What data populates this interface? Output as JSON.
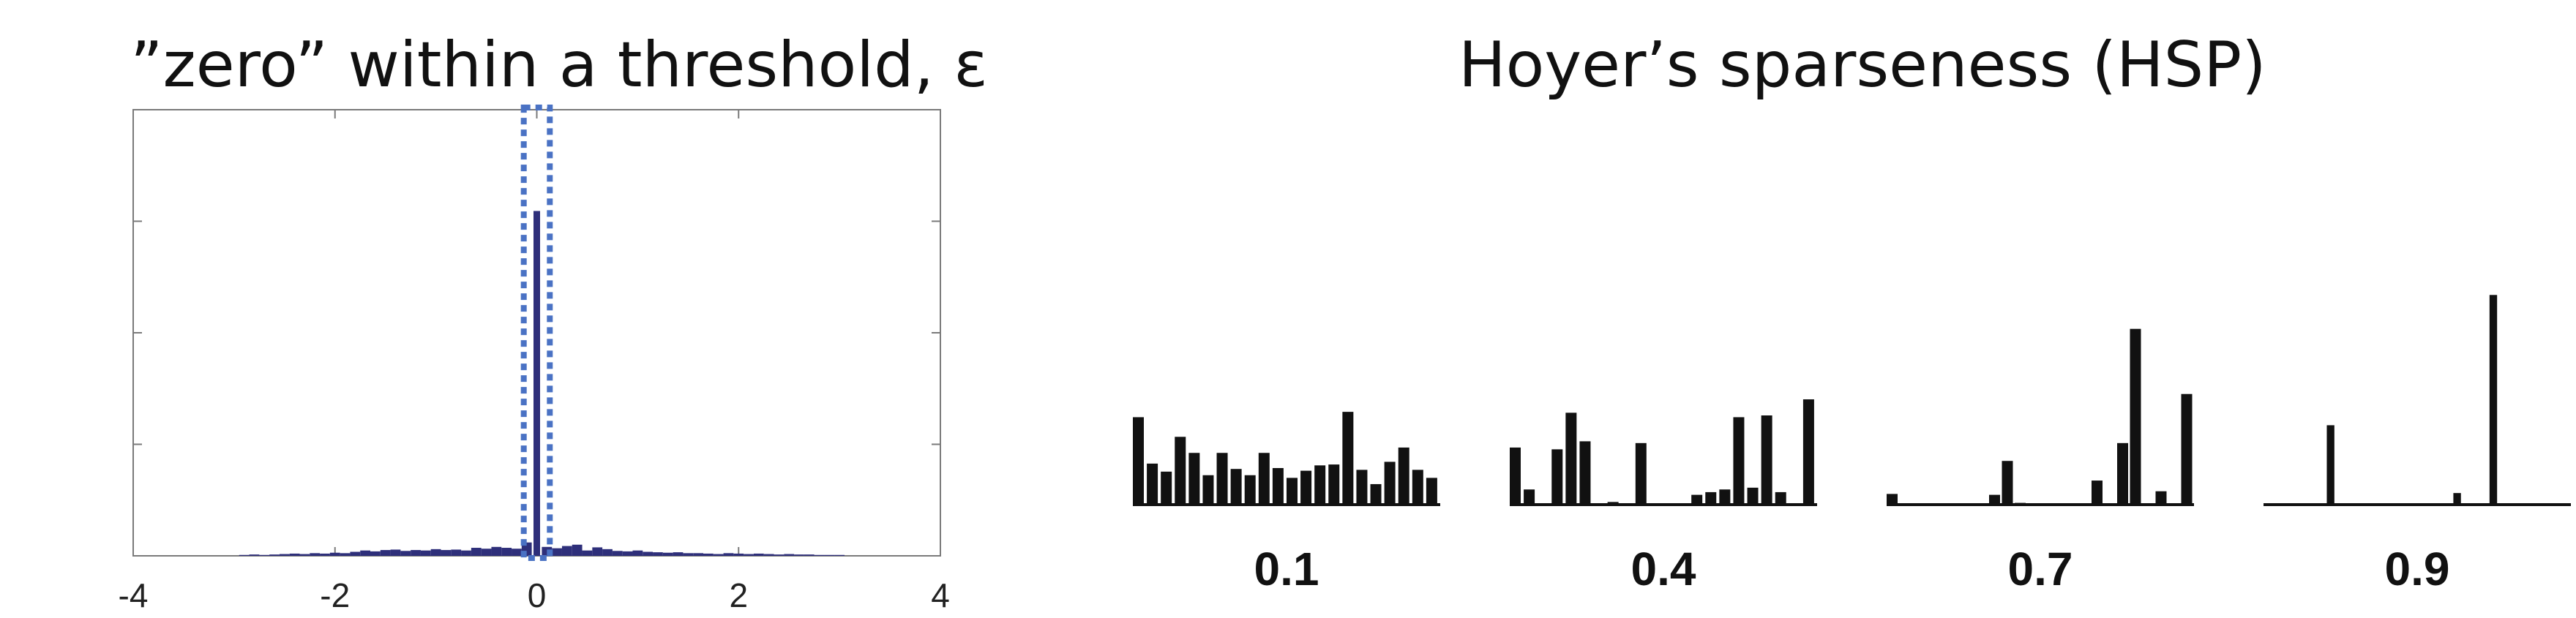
{
  "chart_data": [
    {
      "type": "bar",
      "title": "”zero” within a threshold, ε",
      "xlim": [
        -4,
        4
      ],
      "x_tick_labels": [
        "-4",
        "-2",
        "0",
        "2",
        "4"
      ],
      "ylim": [
        0,
        1
      ],
      "grid": false,
      "bin_width": 0.1,
      "x": [
        -2.9,
        -2.8,
        -2.7,
        -2.6,
        -2.5,
        -2.4,
        -2.3,
        -2.2,
        -2.1,
        -2.0,
        -1.9,
        -1.8,
        -1.7,
        -1.6,
        -1.5,
        -1.4,
        -1.3,
        -1.2,
        -1.1,
        -1.0,
        -0.9,
        -0.8,
        -0.7,
        -0.6,
        -0.5,
        -0.4,
        -0.3,
        -0.2,
        -0.1,
        0.0,
        0.1,
        0.2,
        0.3,
        0.4,
        0.5,
        0.6,
        0.7,
        0.8,
        0.9,
        1.0,
        1.1,
        1.2,
        1.3,
        1.4,
        1.5,
        1.6,
        1.7,
        1.8,
        1.9,
        2.0,
        2.1,
        2.2,
        2.3,
        2.4,
        2.5,
        2.6,
        2.7,
        2.8,
        2.9,
        3.0
      ],
      "values": [
        0.002,
        0.003,
        0.002,
        0.003,
        0.004,
        0.005,
        0.004,
        0.006,
        0.005,
        0.007,
        0.006,
        0.009,
        0.012,
        0.01,
        0.013,
        0.014,
        0.011,
        0.013,
        0.012,
        0.015,
        0.013,
        0.014,
        0.012,
        0.018,
        0.016,
        0.02,
        0.018,
        0.016,
        0.03,
        0.773,
        0.02,
        0.017,
        0.022,
        0.025,
        0.012,
        0.019,
        0.015,
        0.011,
        0.01,
        0.012,
        0.009,
        0.008,
        0.007,
        0.008,
        0.006,
        0.006,
        0.005,
        0.004,
        0.006,
        0.005,
        0.004,
        0.005,
        0.004,
        0.003,
        0.004,
        0.003,
        0.003,
        0.002,
        0.002,
        0.002
      ],
      "annotation": {
        "shape": "dotted-box",
        "x_range": [
          -0.1,
          0.1
        ]
      },
      "colors": {
        "bar": "#2e2f7a",
        "highlight": "#4a72c4"
      }
    },
    {
      "type": "bar",
      "title": "Hoyer’s sparseness (HSP)",
      "grid": false,
      "colors": {
        "bar": "#111111"
      },
      "panels": [
        {
          "label": "0.1",
          "values": [
            0.98,
            0.46,
            0.37,
            0.76,
            0.58,
            0.33,
            0.58,
            0.4,
            0.33,
            0.58,
            0.41,
            0.3,
            0.38,
            0.44,
            0.45,
            1.04,
            0.39,
            0.23,
            0.48,
            0.64,
            0.39,
            0.3
          ]
        },
        {
          "label": "0.4",
          "values": [
            0.64,
            0.17,
            0.0,
            0.62,
            1.03,
            0.71,
            0.0,
            0.03,
            0.0,
            0.69,
            0.0,
            0.0,
            0.0,
            0.11,
            0.14,
            0.17,
            0.98,
            0.19,
            1.0,
            0.14,
            0.0,
            1.18
          ]
        },
        {
          "label": "0.7",
          "values": [
            0.12,
            0.0,
            0.0,
            0.0,
            0.0,
            0.0,
            0.0,
            0.0,
            0.11,
            0.49,
            0.02,
            0.0,
            0.0,
            0.0,
            0.0,
            0.0,
            0.27,
            0.0,
            0.69,
            1.97,
            0.0,
            0.15,
            0.0,
            1.24
          ]
        },
        {
          "label": "0.9",
          "values": [
            0.0,
            0.0,
            0.0,
            0.0,
            0.0,
            0.0,
            0.0,
            0.89,
            0.0,
            0.0,
            0.0,
            0.0,
            0.0,
            0.0,
            0.0,
            0.0,
            0.0,
            0.0,
            0.0,
            0.0,
            0.0,
            0.13,
            0.0,
            0.0,
            0.0,
            2.35,
            0.0,
            0.0,
            0.0,
            0.0,
            0.0,
            0.0,
            0.0,
            0.0
          ]
        }
      ]
    }
  ]
}
